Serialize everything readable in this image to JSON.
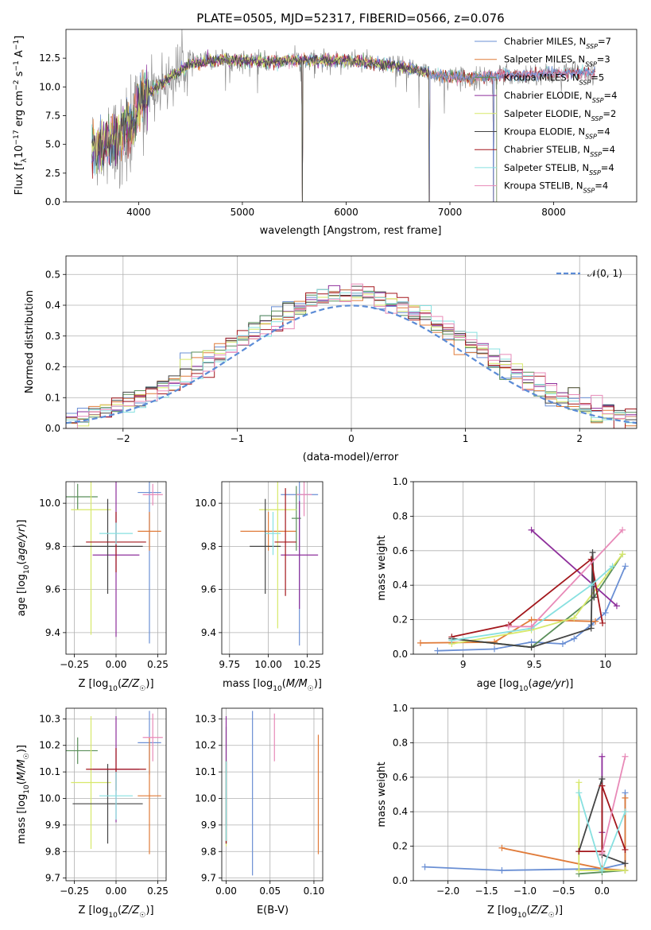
{
  "colors": {
    "series": [
      "#6a8fd4",
      "#e07b39",
      "#5a8f5a",
      "#8e2f9b",
      "#d7e86a",
      "#444444",
      "#a3171c",
      "#87e0e0",
      "#e88ab8"
    ],
    "normal": "#5b8bd6",
    "data_gray": "#808080"
  },
  "chart_data": [
    {
      "id": "spectrum",
      "type": "line",
      "title": "PLATE=0505, MJD=52317, FIBERID=0566, z=0.076",
      "xlabel": "wavelength [Angstrom, rest frame]",
      "ylabel": "Flux [f_λ 10^-17 erg cm^-2 s^-1 A^-1]",
      "xlim": [
        3300,
        8800
      ],
      "ylim": [
        0,
        15
      ],
      "xticks": [
        4000,
        5000,
        6000,
        7000,
        8000
      ],
      "yticks": [
        0.0,
        2.5,
        5.0,
        7.5,
        10.0,
        12.5
      ],
      "legend_position": "right",
      "legend": [
        "Chabrier MILES, N_SSP=7",
        "Salpeter MILES, N_SSP=3",
        "Kroupa MILES, N_SSP=5",
        "Chabrier ELODIE, N_SSP=4",
        "Salpeter ELODIE, N_SSP=2",
        "Kroupa ELODIE, N_SSP=4",
        "Chabrier STELIB, N_SSP=4",
        "Salpeter STELIB, N_SSP=4",
        "Kroupa STELIB, N_SSP=4"
      ],
      "continuum": {
        "x": [
          3550,
          3700,
          3850,
          3950,
          4000,
          4100,
          4300,
          4500,
          4800,
          5100,
          5500,
          6000,
          6500,
          6900,
          7200,
          7450
        ],
        "y": [
          4.5,
          5.0,
          6.0,
          7.0,
          8.5,
          9.5,
          10.8,
          12.0,
          12.4,
          12.2,
          12.3,
          12.3,
          11.8,
          11.0,
          10.8,
          11.0
        ]
      },
      "noise": {
        "base": 0.8,
        "blue_extra": 1.6
      },
      "model_extent": {
        "Chabrier MILES": [
          3550,
          8400
        ],
        "Salpeter MILES": [
          3550,
          7450
        ],
        "Kroupa MILES": [
          3550,
          7450
        ],
        "Chabrier ELODIE": [
          3550,
          6800
        ],
        "Salpeter ELODIE": [
          3550,
          6800
        ],
        "Kroupa ELODIE": [
          3550,
          6800
        ],
        "Chabrier STELIB": [
          3550,
          8400
        ],
        "Salpeter STELIB": [
          3550,
          8400
        ],
        "Kroupa STELIB": [
          3550,
          8400
        ]
      },
      "drops": [
        5577,
        6800,
        7420
      ]
    },
    {
      "id": "residuals",
      "type": "histogram",
      "xlabel": "(data-model)/error",
      "ylabel": "Normed distribution",
      "xlim": [
        -2.5,
        2.5
      ],
      "ylim": [
        0,
        0.56
      ],
      "xticks": [
        -2,
        -1,
        0,
        1,
        2
      ],
      "yticks": [
        0.0,
        0.1,
        0.2,
        0.3,
        0.4,
        0.5
      ],
      "bin_width": 0.1,
      "normal_label": "𝒩(0, 1)",
      "legend_position": "top-right",
      "grid": true
    },
    {
      "id": "age_vs_Z",
      "type": "errorbar",
      "xlabel": "Z [log10(Z/Z☉)]",
      "ylabel": "age [log10(age/yr)]",
      "xlim": [
        -0.3,
        0.3
      ],
      "ylim": [
        9.3,
        10.1
      ],
      "xticks": [
        -0.25,
        0.0,
        0.25
      ],
      "xticklabels": [
        "−0.25",
        "0.00",
        "0.25"
      ],
      "yticks": [
        9.4,
        9.6,
        9.8,
        10.0
      ],
      "points": [
        {
          "x": 0.2,
          "y": 10.05,
          "xerr": 0.07,
          "yerr": 0.7
        },
        {
          "x": 0.2,
          "y": 9.87,
          "xerr": 0.07,
          "yerr": 0.09
        },
        {
          "x": -0.23,
          "y": 10.03,
          "xerr": 0.12,
          "yerr": 0.06
        },
        {
          "x": 0.0,
          "y": 9.76,
          "xerr": 0.14,
          "yerr": 0.38
        },
        {
          "x": -0.15,
          "y": 9.97,
          "xerr": 0.12,
          "yerr": 0.58
        },
        {
          "x": -0.05,
          "y": 9.8,
          "xerr": 0.21,
          "yerr": 0.22
        },
        {
          "x": 0.0,
          "y": 9.82,
          "xerr": 0.18,
          "yerr": 0.14
        },
        {
          "x": 0.0,
          "y": 9.86,
          "xerr": 0.1,
          "yerr": 0.05
        },
        {
          "x": 0.22,
          "y": 10.04,
          "xerr": 0.06,
          "yerr": 0.05
        }
      ]
    },
    {
      "id": "age_vs_mass",
      "type": "errorbar",
      "xlabel": "mass [log10(M/M☉)]",
      "xlim": [
        9.7,
        10.35
      ],
      "ylim": [
        9.3,
        10.1
      ],
      "xticks": [
        9.75,
        10.0,
        10.25
      ],
      "xticklabels": [
        "9.75",
        "10.00",
        "10.25"
      ],
      "yticks": [
        9.4,
        9.6,
        9.8,
        10.0
      ],
      "points": [
        {
          "x": 10.2,
          "y": 10.04,
          "xerr": 0.12,
          "yerr": 0.7
        },
        {
          "x": 10.0,
          "y": 9.87,
          "xerr": 0.18,
          "yerr": 0.09
        },
        {
          "x": 10.18,
          "y": 9.93,
          "xerr": 0.03,
          "yerr": 0.15
        },
        {
          "x": 10.2,
          "y": 9.76,
          "xerr": 0.12,
          "yerr": 0.25
        },
        {
          "x": 10.06,
          "y": 9.97,
          "xerr": 0.12,
          "yerr": 0.55
        },
        {
          "x": 9.98,
          "y": 9.8,
          "xerr": 0.1,
          "yerr": 0.22
        },
        {
          "x": 10.11,
          "y": 9.82,
          "xerr": 0.07,
          "yerr": 0.25
        },
        {
          "x": 10.03,
          "y": 9.86,
          "xerr": 0.05,
          "yerr": 0.1
        },
        {
          "x": 10.23,
          "y": 10.04,
          "xerr": 0.05,
          "yerr": 0.1
        }
      ]
    },
    {
      "id": "mass_weight_vs_age",
      "type": "line",
      "xlabel": "age [log10(age/yr)]",
      "ylabel": "mass weight",
      "xlim": [
        8.65,
        10.22
      ],
      "ylim": [
        0,
        1
      ],
      "xticks": [
        9.0,
        9.5,
        10.0
      ],
      "yticks": [
        0.0,
        0.2,
        0.4,
        0.6,
        0.8,
        1.0
      ],
      "series": [
        {
          "x": [
            8.82,
            9.22,
            9.48,
            9.7,
            9.78,
            9.9,
            10.0,
            10.14
          ],
          "y": [
            0.02,
            0.03,
            0.07,
            0.06,
            0.09,
            0.17,
            0.24,
            0.51
          ]
        },
        {
          "x": [
            8.7,
            9.22,
            9.48,
            9.93
          ],
          "y": [
            0.065,
            0.07,
            0.2,
            0.19
          ]
        },
        {
          "x": [
            8.92,
            9.48,
            9.92,
            10.12
          ],
          "y": [
            0.09,
            0.04,
            0.33,
            0.58
          ]
        },
        {
          "x": [
            9.48,
            10.08
          ],
          "y": [
            0.72,
            0.28
          ]
        },
        {
          "x": [
            8.92,
            9.48,
            9.78,
            10.12
          ],
          "y": [
            0.06,
            0.14,
            0.21,
            0.58
          ]
        },
        {
          "x": [
            8.92,
            9.48,
            9.9,
            9.91,
            9.92
          ],
          "y": [
            0.09,
            0.04,
            0.15,
            0.59,
            0.33
          ]
        },
        {
          "x": [
            8.92,
            9.32,
            9.9,
            9.98
          ],
          "y": [
            0.1,
            0.17,
            0.55,
            0.18
          ]
        },
        {
          "x": [
            8.92,
            9.48,
            9.9,
            10.05
          ],
          "y": [
            0.08,
            0.15,
            0.4,
            0.51
          ]
        },
        {
          "x": [
            9.32,
            9.48,
            10.12
          ],
          "y": [
            0.16,
            0.16,
            0.72
          ]
        }
      ]
    },
    {
      "id": "mass_vs_Z",
      "type": "errorbar",
      "xlabel": "Z [log10(Z/Z☉)]",
      "ylabel": "mass [log10(M/M☉)]",
      "xlim": [
        -0.3,
        0.3
      ],
      "ylim": [
        9.69,
        10.34
      ],
      "xticks": [
        -0.25,
        0.0,
        0.25
      ],
      "xticklabels": [
        "−0.25",
        "0.00",
        "0.25"
      ],
      "yticks": [
        9.7,
        9.8,
        9.9,
        10.0,
        10.1,
        10.2,
        10.3
      ],
      "points": [
        {
          "x": 0.2,
          "y": 10.21,
          "xerr": 0.07,
          "yerr": 0.12
        },
        {
          "x": 0.2,
          "y": 10.01,
          "xerr": 0.07,
          "yerr": 0.22
        },
        {
          "x": -0.23,
          "y": 10.18,
          "xerr": 0.12,
          "yerr": 0.05
        },
        {
          "x": 0.0,
          "y": 10.11,
          "xerr": 0.14,
          "yerr": 0.2
        },
        {
          "x": -0.15,
          "y": 10.06,
          "xerr": 0.12,
          "yerr": 0.25
        },
        {
          "x": -0.05,
          "y": 9.98,
          "xerr": 0.21,
          "yerr": 0.15
        },
        {
          "x": 0.0,
          "y": 10.11,
          "xerr": 0.18,
          "yerr": 0.08
        },
        {
          "x": 0.0,
          "y": 10.01,
          "xerr": 0.1,
          "yerr": 0.09
        },
        {
          "x": 0.22,
          "y": 10.23,
          "xerr": 0.06,
          "yerr": 0.09
        }
      ]
    },
    {
      "id": "mass_vs_ebv",
      "type": "errorbar",
      "xlabel": "E(B-V)",
      "xlim": [
        -0.005,
        0.11
      ],
      "ylim": [
        9.69,
        10.34
      ],
      "xticks": [
        0.0,
        0.05,
        0.1
      ],
      "xticklabels": [
        "0.00",
        "0.05",
        "0.10"
      ],
      "yticks": [
        9.7,
        9.8,
        9.9,
        10.0,
        10.1,
        10.2,
        10.3
      ],
      "vbars": [
        {
          "x": 0.03,
          "y0": 9.71,
          "y1": 10.33
        },
        {
          "x": 0.105,
          "y0": 9.79,
          "y1": 10.24
        },
        {
          "x": 0.0,
          "y0": 9.83,
          "y1": 10.27
        },
        {
          "x": 0.0,
          "y0": 9.9,
          "y1": 10.31
        },
        {
          "x": 0.0,
          "y0": 9.82,
          "y1": 10.14
        },
        {
          "x": 0.0,
          "y0": 9.83,
          "y1": 10.14
        },
        {
          "x": 0.0,
          "y0": 9.83,
          "y1": 10.14
        },
        {
          "x": 0.0,
          "y0": 9.84,
          "y1": 10.14
        },
        {
          "x": 0.055,
          "y0": 10.14,
          "y1": 10.32
        }
      ]
    },
    {
      "id": "mass_weight_vs_Z",
      "type": "line",
      "xlabel": "Z [log10(Z/Z☉)]",
      "ylabel": "mass weight",
      "xlim": [
        -2.45,
        0.45
      ],
      "ylim": [
        0,
        1
      ],
      "xticks": [
        -2.0,
        -1.5,
        -1.0,
        -0.5,
        0.0
      ],
      "xticklabels": [
        "−2.0",
        "−1.5",
        "−1.0",
        "−0.5",
        "0.0"
      ],
      "yticks": [
        0.0,
        0.2,
        0.4,
        0.6,
        0.8,
        1.0
      ],
      "series": [
        {
          "x": [
            -2.3,
            -1.3,
            0.0,
            0.3,
            0.3
          ],
          "y": [
            0.08,
            0.06,
            0.07,
            0.1,
            0.51
          ]
        },
        {
          "x": [
            -1.3,
            0.0,
            0.3,
            0.3
          ],
          "y": [
            0.19,
            0.07,
            0.06,
            0.48
          ]
        },
        {
          "x": [
            -0.3,
            0.0,
            0.3
          ],
          "y": [
            0.04,
            0.05,
            0.06
          ]
        },
        {
          "x": [
            0.0,
            0.0
          ],
          "y": [
            0.72,
            0.28
          ]
        },
        {
          "x": [
            -0.3,
            -0.3,
            0.3
          ],
          "y": [
            0.57,
            0.06,
            0.06
          ]
        },
        {
          "x": [
            -0.3,
            0.0,
            0.0,
            0.3
          ],
          "y": [
            0.17,
            0.59,
            0.15,
            0.1
          ]
        },
        {
          "x": [
            -0.3,
            0.0,
            0.0,
            0.3
          ],
          "y": [
            0.17,
            0.17,
            0.55,
            0.18
          ]
        },
        {
          "x": [
            -0.3,
            0.0,
            0.3
          ],
          "y": [
            0.51,
            0.06,
            0.4
          ]
        },
        {
          "x": [
            0.0,
            0.3
          ],
          "y": [
            0.16,
            0.72
          ]
        }
      ]
    }
  ]
}
